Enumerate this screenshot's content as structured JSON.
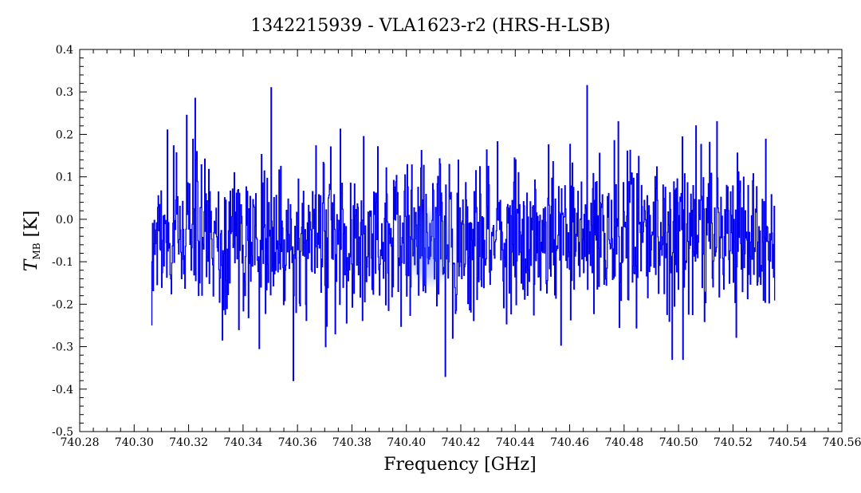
{
  "chart_data": {
    "type": "line",
    "title": "1342215939 - VLA1623-r2 (HRS-H-LSB)",
    "xlabel": "Frequency [GHz]",
    "ylabel_main": "T",
    "ylabel_sub": "MB",
    "ylabel_unit": " [K]",
    "xlim": [
      740.28,
      740.56
    ],
    "ylim": [
      -0.5,
      0.4
    ],
    "x_ticks": [
      "740.28",
      "740.30",
      "740.32",
      "740.34",
      "740.36",
      "740.38",
      "740.40",
      "740.42",
      "740.44",
      "740.46",
      "740.48",
      "740.50",
      "740.52",
      "740.54",
      "740.56"
    ],
    "y_ticks": [
      "-0.5",
      "-0.4",
      "-0.3",
      "-0.2",
      "-0.1",
      "0.0",
      "0.1",
      "0.2",
      "0.3",
      "0.4"
    ],
    "grid": false,
    "series": [
      {
        "color": "#0000ee",
        "x_start": 740.3065,
        "x_end": 740.5355,
        "mean": -0.04,
        "points_per_approx": 1100,
        "notable_values": [
          {
            "x": 740.3065,
            "y": -0.25
          },
          {
            "x": 740.3195,
            "y": 0.245
          },
          {
            "x": 740.3225,
            "y": 0.285
          },
          {
            "x": 740.3505,
            "y": 0.31
          },
          {
            "x": 740.3585,
            "y": -0.38
          },
          {
            "x": 740.3705,
            "y": -0.3
          },
          {
            "x": 740.3845,
            "y": 0.195
          },
          {
            "x": 740.4145,
            "y": -0.37
          },
          {
            "x": 740.4665,
            "y": 0.315
          },
          {
            "x": 740.5065,
            "y": 0.22
          },
          {
            "x": 740.5355,
            "y": -0.19
          }
        ]
      }
    ],
    "annotations": [
      {
        "type": "highlight-ellipse",
        "x_center": 740.409,
        "y_center": -0.065,
        "color": "#3355ff"
      }
    ]
  }
}
